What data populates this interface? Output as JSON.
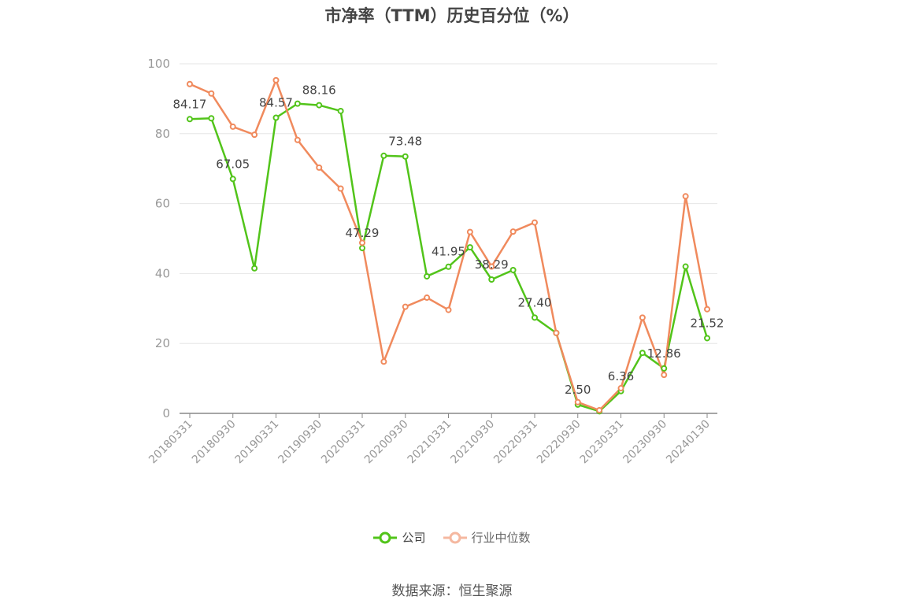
{
  "chart_data": {
    "type": "line",
    "title": "市净率（TTM）历史百分位（%）",
    "xlabel": "",
    "ylabel": "",
    "ylim": [
      0,
      100
    ],
    "yticks": [
      0,
      20,
      40,
      60,
      80,
      100
    ],
    "x": [
      "20180331",
      "20180630",
      "20180930",
      "20181231",
      "20190331",
      "20190630",
      "20190930",
      "20191231",
      "20200331",
      "20200630",
      "20200930",
      "20201231",
      "20210331",
      "20210630",
      "20210930",
      "20211231",
      "20220331",
      "20220630",
      "20220930",
      "20221231",
      "20230331",
      "20230630",
      "20230930",
      "20231231",
      "20240130"
    ],
    "xtick_labels": [
      "20180331",
      "20180930",
      "20190331",
      "20190930",
      "20200331",
      "20200930",
      "20210331",
      "20210930",
      "20220331",
      "20220930",
      "20230331",
      "20230930",
      "20240130"
    ],
    "grid": true,
    "legend": "bottom",
    "series": [
      {
        "name": "公司",
        "color": "#52c41a",
        "values": [
          84.17,
          84.4,
          67.05,
          41.5,
          84.57,
          88.6,
          88.16,
          86.5,
          47.29,
          73.7,
          73.48,
          39.2,
          41.95,
          47.5,
          38.29,
          41.0,
          27.4,
          23.0,
          2.5,
          0.6,
          6.36,
          17.3,
          12.86,
          42.0,
          21.52
        ],
        "labels": {
          "0": "84.17",
          "2": "67.05",
          "4": "84.57",
          "6": "88.16",
          "8": "47.29",
          "10": "73.48",
          "12": "41.95",
          "14": "38.29",
          "16": "27.40",
          "18": "2.50",
          "20": "6.36",
          "22": "12.86",
          "24": "21.52"
        }
      },
      {
        "name": "行业中位数",
        "color": "#f08a5d",
        "values": [
          94.2,
          91.5,
          82.0,
          79.7,
          95.3,
          78.2,
          70.3,
          64.3,
          48.8,
          14.8,
          30.5,
          33.1,
          29.6,
          51.9,
          42.0,
          52.0,
          54.6,
          23.0,
          3.2,
          0.9,
          7.2,
          27.4,
          11.0,
          62.1,
          29.8
        ]
      }
    ]
  },
  "legend": {
    "items": [
      {
        "label": "公司",
        "color": "#52c41a"
      },
      {
        "label": "行业中位数",
        "color": "#f5a88a"
      }
    ]
  },
  "source": "数据来源：恒生聚源"
}
